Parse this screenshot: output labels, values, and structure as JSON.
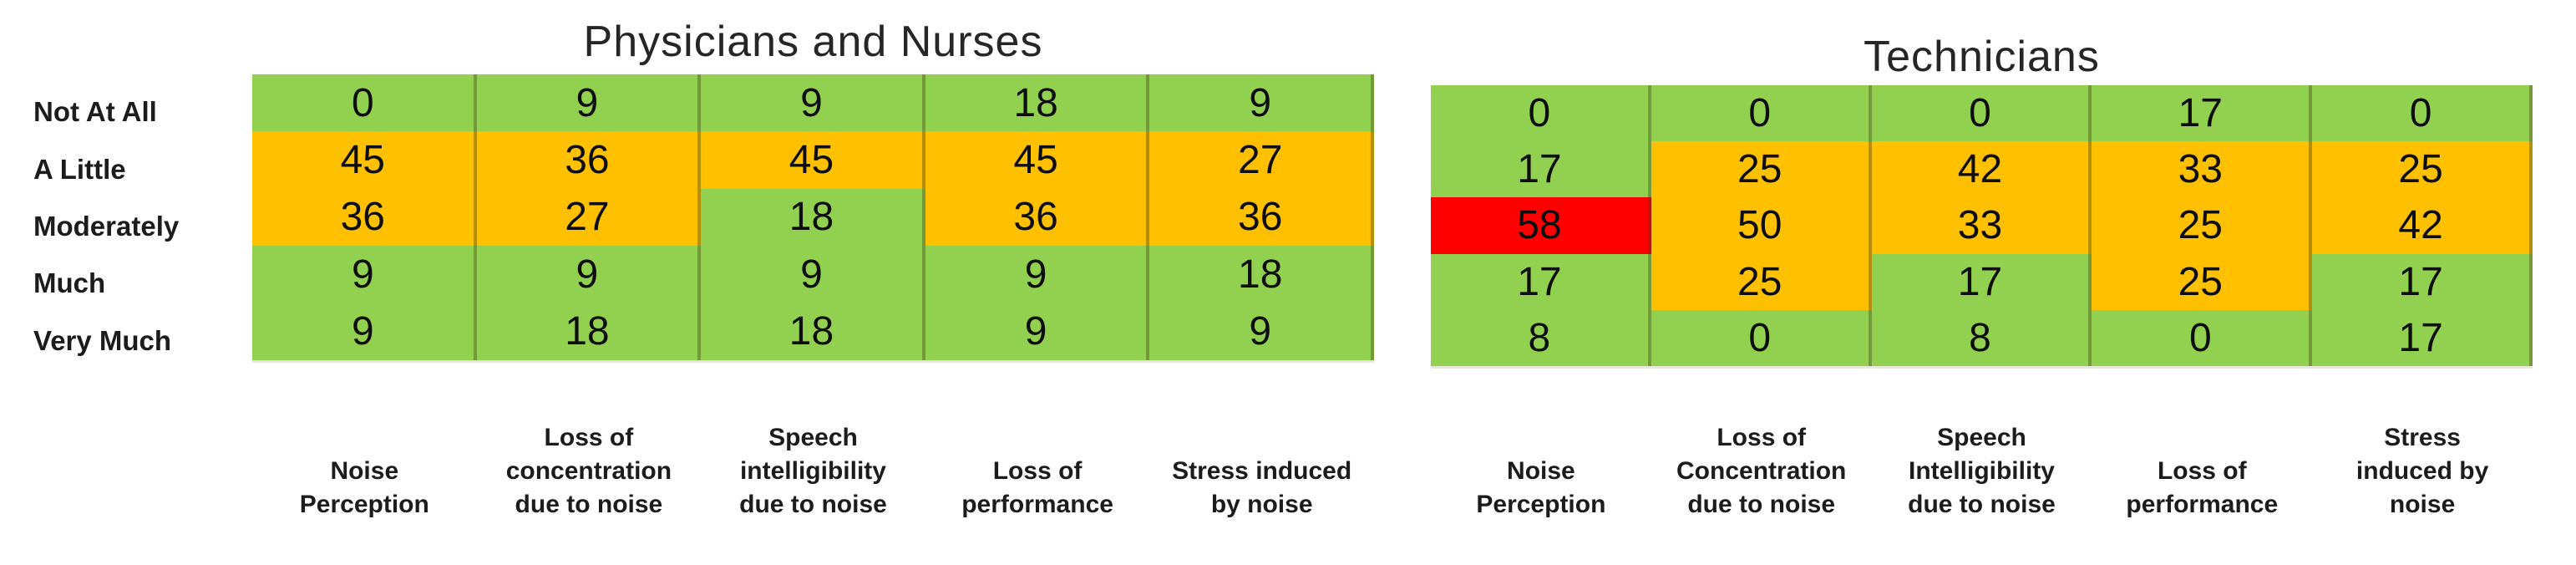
{
  "figure": {
    "response_scale_labels": [
      "Not At All",
      "A Little",
      "Moderately",
      "Much",
      "Very Much"
    ]
  },
  "colors": {
    "green": "#92D050",
    "orange": "#FFC000",
    "red": "#FF0000",
    "separator": "rgba(62,62,24,0.38)",
    "text": "#0d0d0d"
  },
  "chart_data": [
    {
      "type": "heatmap",
      "title": "Physicians and Nurses",
      "unit": "percent of respondents",
      "rows": [
        "Not At All",
        "A Little",
        "Moderately",
        "Much",
        "Very Much"
      ],
      "legend_position": "none",
      "columns": [
        {
          "label": "Noise Perception",
          "label_lines": [
            "Noise",
            "Perception"
          ],
          "values": [
            0,
            45,
            36,
            9,
            9
          ],
          "cell_colors": [
            "green",
            "orange",
            "orange",
            "green",
            "green"
          ]
        },
        {
          "label": "Loss of concentration due to noise",
          "label_lines": [
            "Loss of",
            "concentration",
            "due to noise"
          ],
          "values": [
            9,
            36,
            27,
            9,
            18
          ],
          "cell_colors": [
            "green",
            "orange",
            "orange",
            "green",
            "green"
          ]
        },
        {
          "label": "Speech intelligibility due to noise",
          "label_lines": [
            "Speech",
            "intelligibility",
            "due to noise"
          ],
          "values": [
            9,
            45,
            18,
            9,
            18
          ],
          "cell_colors": [
            "green",
            "orange",
            "green",
            "green",
            "green"
          ]
        },
        {
          "label": "Loss of performance",
          "label_lines": [
            "Loss of",
            "performance"
          ],
          "values": [
            18,
            45,
            36,
            9,
            9
          ],
          "cell_colors": [
            "green",
            "orange",
            "orange",
            "green",
            "green"
          ]
        },
        {
          "label": "Stress induced by noise",
          "label_lines": [
            "Stress induced",
            "by noise"
          ],
          "values": [
            9,
            27,
            36,
            18,
            9
          ],
          "cell_colors": [
            "green",
            "orange",
            "orange",
            "green",
            "green"
          ]
        }
      ]
    },
    {
      "type": "heatmap",
      "title": "Technicians",
      "unit": "percent of respondents",
      "rows": [
        "Not At All",
        "A Little",
        "Moderately",
        "Much",
        "Very Much"
      ],
      "legend_position": "none",
      "columns": [
        {
          "label": "Noise Perception",
          "label_lines": [
            "Noise",
            "Perception"
          ],
          "values": [
            0,
            17,
            58,
            17,
            8
          ],
          "cell_colors": [
            "green",
            "green",
            "red",
            "green",
            "green"
          ]
        },
        {
          "label": "Loss of Concentration due to noise",
          "label_lines": [
            "Loss of",
            "Concentration",
            "due to noise"
          ],
          "values": [
            0,
            25,
            50,
            25,
            0
          ],
          "cell_colors": [
            "green",
            "orange",
            "orange",
            "orange",
            "green"
          ]
        },
        {
          "label": "Speech Intelligibility due to noise",
          "label_lines": [
            "Speech",
            "Intelligibility",
            "due to noise"
          ],
          "values": [
            0,
            42,
            33,
            17,
            8
          ],
          "cell_colors": [
            "green",
            "orange",
            "orange",
            "green",
            "green"
          ]
        },
        {
          "label": "Loss of performance",
          "label_lines": [
            "Loss of",
            "performance"
          ],
          "values": [
            17,
            33,
            25,
            25,
            0
          ],
          "cell_colors": [
            "green",
            "orange",
            "orange",
            "orange",
            "green"
          ]
        },
        {
          "label": "Stress induced by noise",
          "label_lines": [
            "Stress",
            "induced by",
            "noise"
          ],
          "values": [
            0,
            25,
            42,
            17,
            17
          ],
          "cell_colors": [
            "green",
            "orange",
            "orange",
            "green",
            "green"
          ]
        }
      ]
    }
  ]
}
